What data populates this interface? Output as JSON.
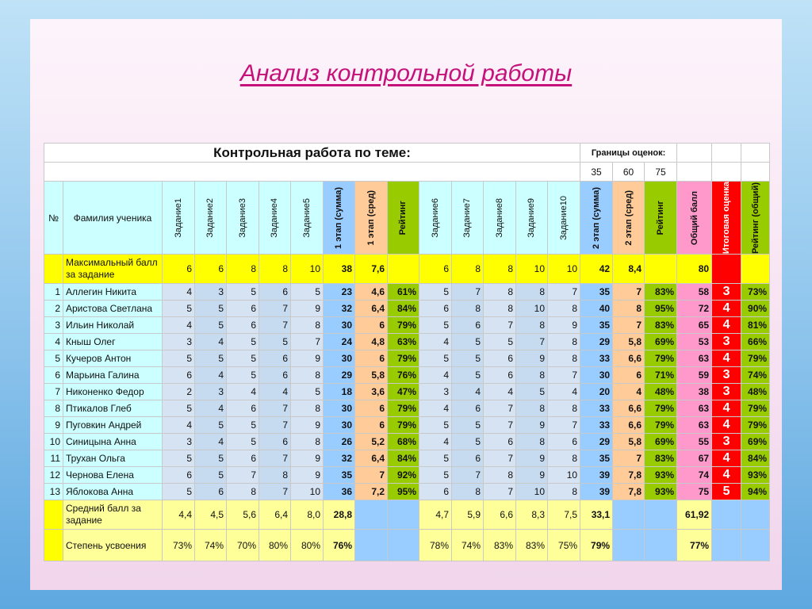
{
  "title": "Анализ контрольной работы",
  "topic_label": "Контрольная работа по теме:",
  "bounds_label": "Границы оценок:",
  "bounds": [
    "35",
    "60",
    "75"
  ],
  "headers": {
    "num": "№",
    "name": "Фамилия ученика",
    "tasks1": [
      "Задание1",
      "Задание2",
      "Задание3",
      "Задание4",
      "Задание5"
    ],
    "stage1_sum": "1 этап (сумма)",
    "stage1_avg": "1 этап (сред)",
    "rating1": "Рейтинг",
    "tasks2": [
      "Задание6",
      "Задание7",
      "Задание8",
      "Задание9",
      "Задание10"
    ],
    "stage2_sum": "2 этап (сумма)",
    "stage2_avg": "2 этап (сред)",
    "rating2": "Рейтинг",
    "total": "Общий балл",
    "final_grade": "Итоговая оценка",
    "rating_total": "Рейтинг (общий)"
  },
  "max_row": {
    "label": "Максимальный балл за задание",
    "t1": [
      "6",
      "6",
      "8",
      "8",
      "10"
    ],
    "s1sum": "38",
    "s1avg": "7,6",
    "t2": [
      "6",
      "8",
      "8",
      "10",
      "10"
    ],
    "s2sum": "42",
    "s2avg": "8,4",
    "total": "80"
  },
  "students": [
    {
      "n": "1",
      "name": "Аллегин Никита",
      "t1": [
        "4",
        "3",
        "5",
        "6",
        "5"
      ],
      "s1sum": "23",
      "s1avg": "4,6",
      "r1": "61%",
      "t2": [
        "5",
        "7",
        "8",
        "8",
        "7"
      ],
      "s2sum": "35",
      "s2avg": "7",
      "r2": "83%",
      "total": "58",
      "grade": "3",
      "rt": "73%"
    },
    {
      "n": "2",
      "name": "Аристова Светлана",
      "t1": [
        "5",
        "5",
        "6",
        "7",
        "9"
      ],
      "s1sum": "32",
      "s1avg": "6,4",
      "r1": "84%",
      "t2": [
        "6",
        "8",
        "8",
        "10",
        "8"
      ],
      "s2sum": "40",
      "s2avg": "8",
      "r2": "95%",
      "total": "72",
      "grade": "4",
      "rt": "90%"
    },
    {
      "n": "3",
      "name": "Ильин Николай",
      "t1": [
        "4",
        "5",
        "6",
        "7",
        "8"
      ],
      "s1sum": "30",
      "s1avg": "6",
      "r1": "79%",
      "t2": [
        "5",
        "6",
        "7",
        "8",
        "9"
      ],
      "s2sum": "35",
      "s2avg": "7",
      "r2": "83%",
      "total": "65",
      "grade": "4",
      "rt": "81%"
    },
    {
      "n": "4",
      "name": "Кныш Олег",
      "t1": [
        "3",
        "4",
        "5",
        "5",
        "7"
      ],
      "s1sum": "24",
      "s1avg": "4,8",
      "r1": "63%",
      "t2": [
        "4",
        "5",
        "5",
        "7",
        "8"
      ],
      "s2sum": "29",
      "s2avg": "5,8",
      "r2": "69%",
      "total": "53",
      "grade": "3",
      "rt": "66%"
    },
    {
      "n": "5",
      "name": "Кучеров Антон",
      "t1": [
        "5",
        "5",
        "5",
        "6",
        "9"
      ],
      "s1sum": "30",
      "s1avg": "6",
      "r1": "79%",
      "t2": [
        "5",
        "5",
        "6",
        "9",
        "8"
      ],
      "s2sum": "33",
      "s2avg": "6,6",
      "r2": "79%",
      "total": "63",
      "grade": "4",
      "rt": "79%"
    },
    {
      "n": "6",
      "name": "Марьина Галина",
      "t1": [
        "6",
        "4",
        "5",
        "6",
        "8"
      ],
      "s1sum": "29",
      "s1avg": "5,8",
      "r1": "76%",
      "t2": [
        "4",
        "5",
        "6",
        "8",
        "7"
      ],
      "s2sum": "30",
      "s2avg": "6",
      "r2": "71%",
      "total": "59",
      "grade": "3",
      "rt": "74%"
    },
    {
      "n": "7",
      "name": "Никоненко Федор",
      "t1": [
        "2",
        "3",
        "4",
        "4",
        "5"
      ],
      "s1sum": "18",
      "s1avg": "3,6",
      "r1": "47%",
      "t2": [
        "3",
        "4",
        "4",
        "5",
        "4"
      ],
      "s2sum": "20",
      "s2avg": "4",
      "r2": "48%",
      "total": "38",
      "grade": "3",
      "rt": "48%"
    },
    {
      "n": "8",
      "name": "Птикалов Глеб",
      "t1": [
        "5",
        "4",
        "6",
        "7",
        "8"
      ],
      "s1sum": "30",
      "s1avg": "6",
      "r1": "79%",
      "t2": [
        "4",
        "6",
        "7",
        "8",
        "8"
      ],
      "s2sum": "33",
      "s2avg": "6,6",
      "r2": "79%",
      "total": "63",
      "grade": "4",
      "rt": "79%"
    },
    {
      "n": "9",
      "name": "Пуговкин Андрей",
      "t1": [
        "4",
        "5",
        "5",
        "7",
        "9"
      ],
      "s1sum": "30",
      "s1avg": "6",
      "r1": "79%",
      "t2": [
        "5",
        "5",
        "7",
        "9",
        "7"
      ],
      "s2sum": "33",
      "s2avg": "6,6",
      "r2": "79%",
      "total": "63",
      "grade": "4",
      "rt": "79%"
    },
    {
      "n": "10",
      "name": "Синицына Анна",
      "t1": [
        "3",
        "4",
        "5",
        "6",
        "8"
      ],
      "s1sum": "26",
      "s1avg": "5,2",
      "r1": "68%",
      "t2": [
        "4",
        "5",
        "6",
        "8",
        "6"
      ],
      "s2sum": "29",
      "s2avg": "5,8",
      "r2": "69%",
      "total": "55",
      "grade": "3",
      "rt": "69%"
    },
    {
      "n": "11",
      "name": "Трухан Ольга",
      "t1": [
        "5",
        "5",
        "6",
        "7",
        "9"
      ],
      "s1sum": "32",
      "s1avg": "6,4",
      "r1": "84%",
      "t2": [
        "5",
        "6",
        "7",
        "9",
        "8"
      ],
      "s2sum": "35",
      "s2avg": "7",
      "r2": "83%",
      "total": "67",
      "grade": "4",
      "rt": "84%"
    },
    {
      "n": "12",
      "name": "Чернова Елена",
      "t1": [
        "6",
        "5",
        "7",
        "8",
        "9"
      ],
      "s1sum": "35",
      "s1avg": "7",
      "r1": "92%",
      "t2": [
        "5",
        "7",
        "8",
        "9",
        "10"
      ],
      "s2sum": "39",
      "s2avg": "7,8",
      "r2": "93%",
      "total": "74",
      "grade": "4",
      "rt": "93%"
    },
    {
      "n": "13",
      "name": "Яблокова Анна",
      "t1": [
        "5",
        "6",
        "8",
        "7",
        "10"
      ],
      "s1sum": "36",
      "s1avg": "7,2",
      "r1": "95%",
      "t2": [
        "6",
        "8",
        "7",
        "10",
        "8"
      ],
      "s2sum": "39",
      "s2avg": "7,8",
      "r2": "93%",
      "total": "75",
      "grade": "5",
      "rt": "94%"
    }
  ],
  "avg_row": {
    "label": "Средний балл за задание",
    "t1": [
      "4,4",
      "4,5",
      "5,6",
      "6,4",
      "8,0"
    ],
    "s1sum": "28,8",
    "t2": [
      "4,7",
      "5,9",
      "6,6",
      "8,3",
      "7,5"
    ],
    "s2sum": "33,1",
    "total": "61,92"
  },
  "degree_row": {
    "label": "Степень усвоения",
    "t1": [
      "73%",
      "74%",
      "70%",
      "80%",
      "80%"
    ],
    "s1sum": "76%",
    "t2": [
      "78%",
      "74%",
      "83%",
      "83%",
      "75%"
    ],
    "s2sum": "79%",
    "total": "77%"
  }
}
